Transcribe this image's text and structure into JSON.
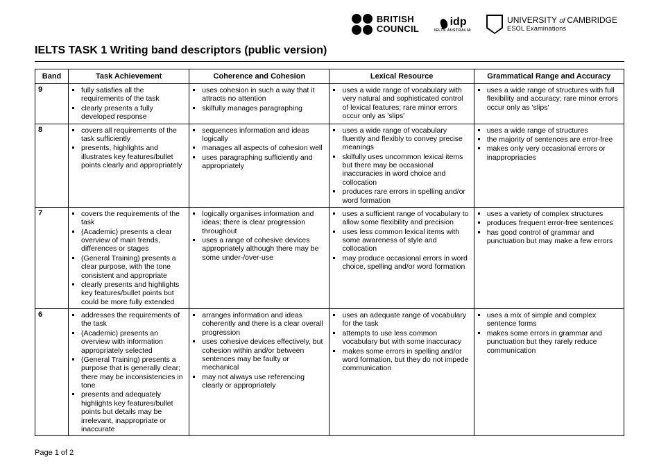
{
  "logos": {
    "british_council_line1": "BRITISH",
    "british_council_line2": "COUNCIL",
    "idp_name": "idp",
    "idp_sub": "IELTS AUSTRALIA",
    "cambridge_line1_a": "UNIVERSITY ",
    "cambridge_line1_of": "of ",
    "cambridge_line1_b": "CAMBRIDGE",
    "cambridge_line2": "ESOL Examinations"
  },
  "title": "IELTS TASK 1 Writing band descriptors (public version)",
  "columns": [
    "Band",
    "Task Achievement",
    "Coherence and Cohesion",
    "Lexical Resource",
    "Grammatical Range and Accuracy"
  ],
  "rows": [
    {
      "band": "9",
      "ta": [
        "fully satisfies all the requirements of the task",
        "clearly presents a fully developed response"
      ],
      "cc": [
        "uses cohesion in such a way that it attracts no attention",
        "skilfully manages paragraphing"
      ],
      "lr": [
        "uses a wide range of vocabulary with very natural and sophisticated control of lexical features; rare minor errors occur only as 'slips'"
      ],
      "gr": [
        "uses a wide range of structures with full flexibility and accuracy; rare minor errors occur only as 'slips'"
      ]
    },
    {
      "band": "8",
      "ta": [
        "covers all requirements of the task sufficiently",
        "presents, highlights and illustrates key features/bullet points clearly and appropriately"
      ],
      "cc": [
        "sequences information and ideas logically",
        "manages all aspects of cohesion well",
        "uses paragraphing sufficiently and appropriately"
      ],
      "lr": [
        "uses a wide range of vocabulary fluently and flexibly to convey precise meanings",
        "skilfully uses uncommon lexical items but there may be occasional inaccuracies in word choice and collocation",
        "produces rare errors in spelling and/or word formation"
      ],
      "gr": [
        "uses a wide range of structures",
        "the majority of sentences are error-free",
        "makes only very occasional errors or inappropriacies"
      ]
    },
    {
      "band": "7",
      "ta": [
        "covers the requirements of the task",
        "(Academic) presents a clear overview  of main trends, differences or stages",
        "(General Training) presents a clear purpose, with the tone consistent and appropriate",
        "clearly presents and highlights key features/bullet points but could be more fully extended"
      ],
      "cc": [
        "logically organises information and ideas; there is clear progression throughout",
        "uses a range of cohesive devices appropriately although there may be some under-/over-use"
      ],
      "lr": [
        "uses a sufficient range of vocabulary to allow some flexibility and precision",
        "uses less common lexical items with some awareness of style and collocation",
        "may produce occasional errors in word choice, spelling and/or word formation"
      ],
      "gr": [
        "uses a variety of complex structures",
        "produces frequent error-free sentences",
        "has good control of grammar and punctuation but may make a few errors"
      ]
    },
    {
      "band": "6",
      "ta": [
        "addresses the requirements of the task",
        "(Academic) presents an overview with information appropriately selected",
        "(General Training) presents a purpose that is generally clear; there may be inconsistencies in tone",
        "presents and adequately highlights key features/bullet points but details may be irrelevant, inappropriate or inaccurate"
      ],
      "cc": [
        "arranges information and ideas coherently and there is a clear overall progression",
        "uses cohesive devices effectively, but cohesion within and/or between sentences may be faulty or mechanical",
        "may not always use referencing clearly or  appropriately"
      ],
      "lr": [
        "uses an adequate range of vocabulary for the task",
        "attempts to use less common vocabulary but with some inaccuracy",
        "makes some errors in spelling and/or word formation, but they do not impede communication"
      ],
      "gr": [
        "uses a mix of simple and complex sentence forms",
        "makes some errors in grammar and punctuation but they rarely reduce communication"
      ]
    }
  ],
  "footer": "Page 1 of 2"
}
